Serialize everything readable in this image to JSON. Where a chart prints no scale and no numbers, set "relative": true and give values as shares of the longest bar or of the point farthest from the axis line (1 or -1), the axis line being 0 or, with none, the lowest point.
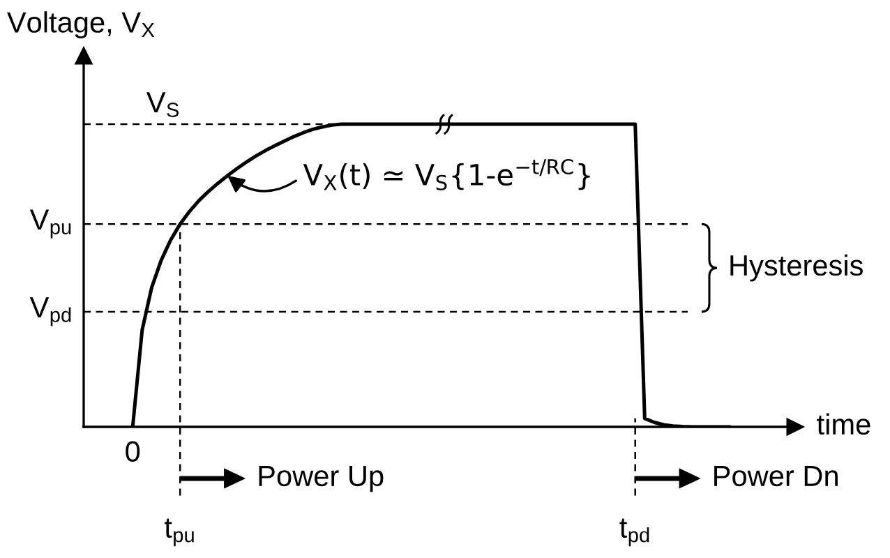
{
  "chart_data": {
    "type": "line",
    "ylabel": "Voltage, V$_{X}$",
    "xlabel": "time",
    "relative": true,
    "color": "#000000",
    "line_style": "solid",
    "categories": [
      "0",
      null,
      null,
      null,
      null,
      "t$_{pu}$",
      null,
      null,
      null,
      null,
      null,
      null,
      null,
      null,
      null,
      null,
      null,
      null,
      null,
      null,
      null,
      null,
      null,
      null,
      null,
      null,
      null,
      null,
      null,
      null,
      null,
      null,
      null,
      null,
      null,
      null,
      null,
      null,
      null,
      null,
      null,
      null,
      null,
      null,
      null,
      null,
      null,
      null,
      null,
      null,
      null,
      null,
      null,
      "t$_{pd}$",
      null,
      null,
      null,
      null,
      null,
      null,
      null,
      null,
      null,
      null
    ],
    "values": [
      0,
      0.32,
      0.46,
      0.55,
      0.617,
      0.67,
      0.712,
      0.748,
      0.778,
      0.805,
      0.83,
      0.853,
      0.875,
      0.895,
      0.913,
      0.929,
      0.944,
      0.959,
      0.972,
      0.983,
      0.991,
      0.997,
      1,
      1,
      1,
      1,
      1,
      1,
      1,
      1,
      1,
      1,
      1,
      1,
      1,
      1,
      1,
      1,
      1,
      1,
      1,
      1,
      1,
      1,
      1,
      1,
      1,
      1,
      1,
      1,
      1,
      1,
      1,
      1,
      0.028,
      0.015,
      0.007,
      0.003,
      0.001,
      0,
      0,
      0,
      0,
      0
    ],
    "ref_lines": [
      {
        "axis": "y",
        "value": 1,
        "label": "V$_{S}$",
        "color": "#000000",
        "line_style": "dashed"
      },
      {
        "axis": "y",
        "value": 0.67,
        "label": "V$_{pu}$",
        "color": "#000000",
        "line_style": "dashed"
      },
      {
        "axis": "y",
        "value": 0.38,
        "label": "V$_{pd}$",
        "color": "#000000",
        "line_style": "dashed"
      }
    ],
    "annotations": [
      "Power Up",
      "Power Dn",
      "V$_{X}$(t) ≃ V$_{S}${1-e$^{−t/RC}$}",
      "Hysteresis"
    ]
  }
}
